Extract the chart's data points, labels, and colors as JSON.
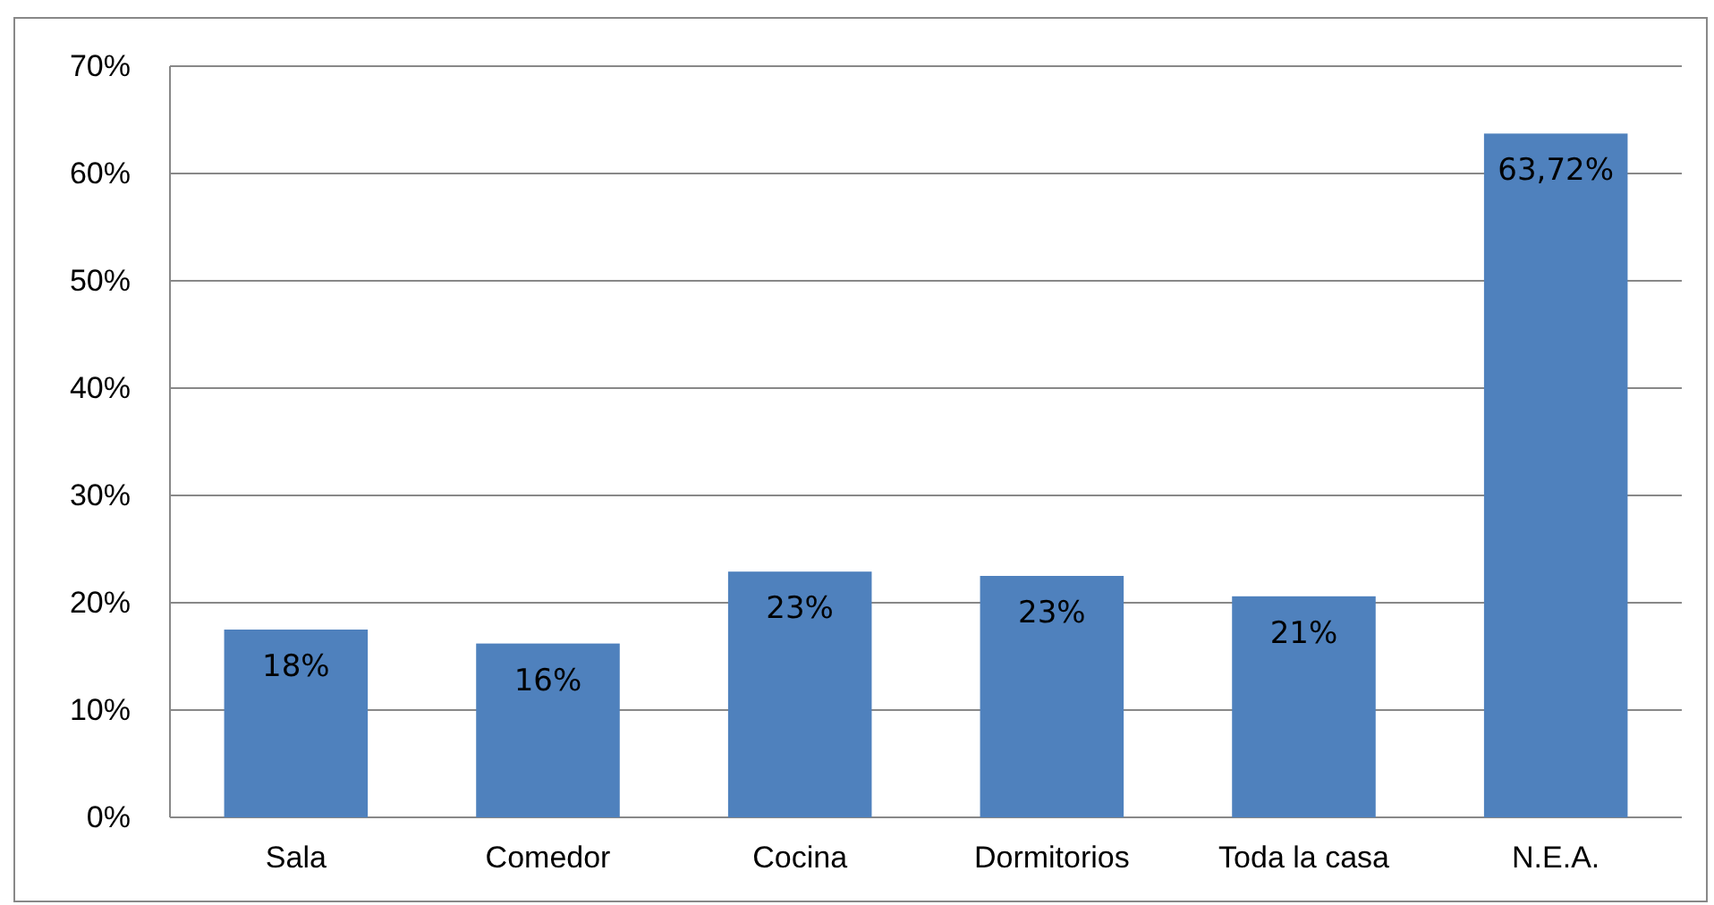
{
  "chart_data": {
    "type": "bar",
    "categories": [
      "Sala",
      "Comedor",
      "Cocina",
      "Dormitorios",
      "Toda la casa",
      "N.E.A."
    ],
    "values": [
      17.5,
      16.2,
      22.9,
      22.5,
      20.6,
      63.72
    ],
    "color": "#4f81bd",
    "value_labels": [
      "18%",
      "16%",
      "23%",
      "23%",
      "21%",
      "63,72%"
    ],
    "ylim": [
      0,
      70
    ],
    "yticks": [
      {
        "value": 0,
        "label": "0%"
      },
      {
        "value": 10,
        "label": "10%"
      },
      {
        "value": 20,
        "label": "20%"
      },
      {
        "value": 30,
        "label": "30%"
      },
      {
        "value": 40,
        "label": "40%"
      },
      {
        "value": 50,
        "label": "50%"
      },
      {
        "value": 60,
        "label": "60%"
      },
      {
        "value": 70,
        "label": "70%"
      }
    ],
    "grid": "y"
  }
}
